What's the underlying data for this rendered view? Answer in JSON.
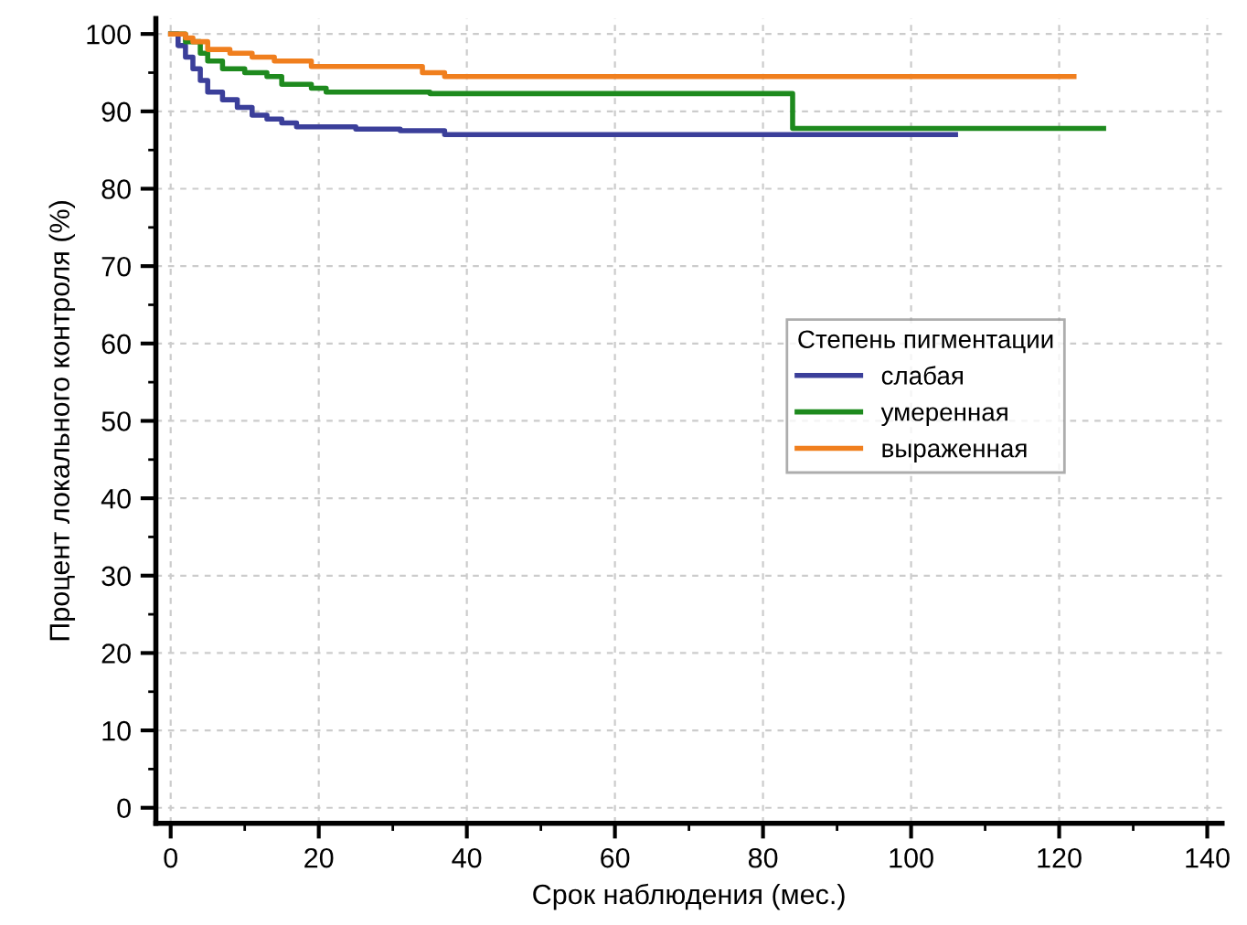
{
  "chart_data": {
    "type": "step",
    "xlabel": "Срок наблюдения (мес.)",
    "ylabel": "Процент локального контроля (%)",
    "legend_title": "Степень пигментации",
    "legend": "center right",
    "grid": true,
    "xlim": [
      -2,
      142
    ],
    "ylim": [
      -2,
      102
    ],
    "xticks": [
      0,
      20,
      40,
      60,
      80,
      100,
      120,
      140
    ],
    "yticks": [
      0,
      10,
      20,
      30,
      40,
      50,
      60,
      70,
      80,
      90,
      100
    ],
    "series": [
      {
        "name": "слабая",
        "color": "#3b3f9a",
        "x": [
          0,
          1,
          2,
          3,
          4,
          5,
          7,
          9,
          11,
          13,
          15,
          17,
          25,
          31,
          37,
          106
        ],
        "values": [
          100,
          98.5,
          97,
          95.5,
          94,
          92.5,
          91.5,
          90.5,
          89.5,
          89,
          88.5,
          88,
          87.7,
          87.5,
          87,
          87
        ]
      },
      {
        "name": "умеренная",
        "color": "#1e8a1e",
        "x": [
          0,
          2,
          4,
          5,
          7,
          10,
          13,
          15,
          19,
          21,
          35,
          84,
          126
        ],
        "values": [
          100,
          99,
          97.5,
          96.5,
          95.5,
          95,
          94.5,
          93.5,
          93,
          92.5,
          92.3,
          87.8,
          87.8
        ]
      },
      {
        "name": "выраженная",
        "color": "#f07f1e",
        "x": [
          0,
          2,
          3,
          5,
          8,
          11,
          14,
          19,
          34,
          37,
          122
        ],
        "values": [
          100,
          99.5,
          99,
          98,
          97.5,
          97,
          96.5,
          95.8,
          95,
          94.5,
          94.5
        ]
      }
    ]
  }
}
